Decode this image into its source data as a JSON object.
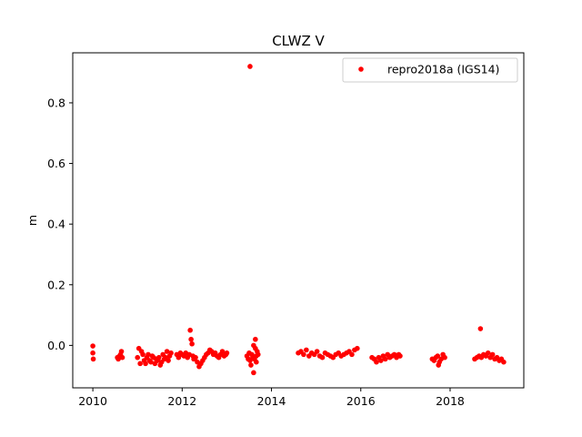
{
  "chart_data": {
    "type": "scatter",
    "title": "CLWZ V",
    "xlabel": "",
    "ylabel": "m",
    "xlim": [
      2009.55,
      2019.65
    ],
    "ylim": [
      -0.14,
      0.965
    ],
    "x_ticks": [
      2010,
      2012,
      2014,
      2016,
      2018
    ],
    "x_tick_labels": [
      "2010",
      "2012",
      "2014",
      "2016",
      "2018"
    ],
    "y_ticks": [
      0.0,
      0.2,
      0.4,
      0.6,
      0.8
    ],
    "y_tick_labels": [
      "0.0",
      "0.2",
      "0.4",
      "0.6",
      "0.8"
    ],
    "grid": false,
    "legend_position": "top-right",
    "marker_color": "#ff0000",
    "series": [
      {
        "name": "repro2018a (IGS14)",
        "x": [
          2010.0,
          2010.0,
          2010.01,
          2010.55,
          2010.57,
          2010.6,
          2010.62,
          2010.64,
          2010.66,
          2011.0,
          2011.03,
          2011.06,
          2011.09,
          2011.12,
          2011.15,
          2011.18,
          2011.21,
          2011.24,
          2011.27,
          2011.3,
          2011.33,
          2011.36,
          2011.39,
          2011.42,
          2011.45,
          2011.48,
          2011.51,
          2011.54,
          2011.57,
          2011.6,
          2011.63,
          2011.66,
          2011.69,
          2011.72,
          2011.75,
          2011.88,
          2011.92,
          2011.96,
          2012.0,
          2012.04,
          2012.08,
          2012.12,
          2012.16,
          2012.18,
          2012.2,
          2012.22,
          2012.24,
          2012.26,
          2012.3,
          2012.34,
          2012.38,
          2012.42,
          2012.46,
          2012.5,
          2012.54,
          2012.58,
          2012.62,
          2012.66,
          2012.7,
          2012.74,
          2012.78,
          2012.82,
          2012.86,
          2012.9,
          2012.94,
          2012.98,
          2013.0,
          2013.45,
          2013.48,
          2013.5,
          2013.52,
          2013.54,
          2013.56,
          2013.58,
          2013.6,
          2013.62,
          2013.64,
          2013.66,
          2013.68,
          2013.7,
          2013.52,
          2013.6,
          2013.64,
          2013.66,
          2014.6,
          2014.66,
          2014.72,
          2014.78,
          2014.84,
          2014.9,
          2014.96,
          2015.02,
          2015.08,
          2015.14,
          2015.2,
          2015.26,
          2015.32,
          2015.38,
          2015.44,
          2015.5,
          2015.56,
          2015.62,
          2015.68,
          2015.74,
          2015.8,
          2015.86,
          2015.92,
          2016.25,
          2016.3,
          2016.35,
          2016.4,
          2016.45,
          2016.5,
          2016.55,
          2016.6,
          2016.65,
          2016.7,
          2016.75,
          2016.8,
          2016.85,
          2016.88,
          2017.6,
          2017.64,
          2017.68,
          2017.72,
          2017.76,
          2017.8,
          2017.84,
          2017.88,
          2017.74,
          2018.55,
          2018.6,
          2018.65,
          2018.68,
          2018.7,
          2018.75,
          2018.8,
          2018.85,
          2018.9,
          2018.95,
          2019.0,
          2019.05,
          2019.1,
          2019.15,
          2019.2
        ],
        "y": [
          -0.002,
          -0.025,
          -0.045,
          -0.04,
          -0.045,
          -0.035,
          -0.03,
          -0.02,
          -0.04,
          -0.04,
          -0.01,
          -0.06,
          -0.02,
          -0.03,
          -0.05,
          -0.06,
          -0.04,
          -0.03,
          -0.05,
          -0.055,
          -0.035,
          -0.04,
          -0.06,
          -0.045,
          -0.05,
          -0.04,
          -0.065,
          -0.055,
          -0.03,
          -0.045,
          -0.04,
          -0.02,
          -0.05,
          -0.035,
          -0.025,
          -0.03,
          -0.04,
          -0.025,
          -0.03,
          -0.035,
          -0.025,
          -0.04,
          -0.03,
          0.05,
          0.02,
          0.005,
          -0.035,
          -0.045,
          -0.04,
          -0.055,
          -0.07,
          -0.06,
          -0.05,
          -0.04,
          -0.03,
          -0.025,
          -0.015,
          -0.02,
          -0.03,
          -0.025,
          -0.035,
          -0.04,
          -0.03,
          -0.02,
          -0.035,
          -0.03,
          -0.025,
          -0.035,
          -0.045,
          -0.025,
          -0.05,
          -0.065,
          -0.03,
          -0.04,
          0.0,
          -0.045,
          -0.01,
          -0.035,
          -0.02,
          -0.03,
          0.92,
          -0.09,
          0.02,
          -0.055,
          -0.025,
          -0.02,
          -0.03,
          -0.015,
          -0.035,
          -0.025,
          -0.03,
          -0.02,
          -0.035,
          -0.04,
          -0.025,
          -0.03,
          -0.035,
          -0.04,
          -0.03,
          -0.025,
          -0.035,
          -0.03,
          -0.025,
          -0.02,
          -0.03,
          -0.015,
          -0.01,
          -0.04,
          -0.045,
          -0.055,
          -0.04,
          -0.05,
          -0.035,
          -0.045,
          -0.03,
          -0.04,
          -0.035,
          -0.03,
          -0.04,
          -0.03,
          -0.035,
          -0.045,
          -0.05,
          -0.04,
          -0.035,
          -0.055,
          -0.045,
          -0.03,
          -0.04,
          -0.065,
          -0.045,
          -0.04,
          -0.035,
          0.055,
          -0.04,
          -0.03,
          -0.035,
          -0.025,
          -0.04,
          -0.03,
          -0.045,
          -0.04,
          -0.05,
          -0.045,
          -0.055
        ]
      }
    ]
  }
}
